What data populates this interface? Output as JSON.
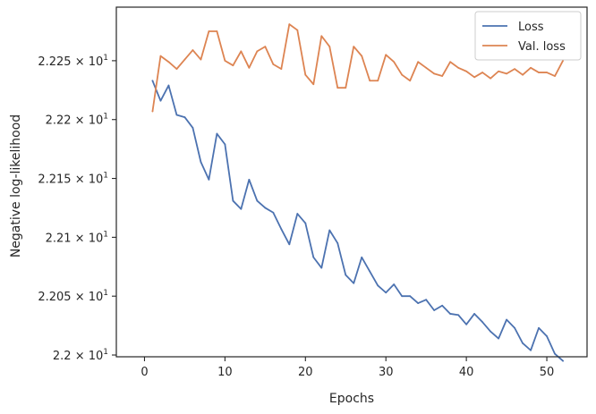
{
  "chart_data": {
    "type": "line",
    "title": "",
    "xlabel": "Epochs",
    "ylabel": "Negative log-likelihood",
    "xlim": [
      -3.5,
      55
    ],
    "ylim": [
      21.9985,
      22.2955
    ],
    "x_ticks": [
      0,
      10,
      20,
      30,
      40,
      50
    ],
    "x_tick_labels": [
      "0",
      "10",
      "20",
      "30",
      "40",
      "50"
    ],
    "y_ticks": [
      22.0,
      22.05,
      22.1,
      22.15,
      22.2,
      22.25
    ],
    "y_tick_labels": [
      {
        "mantissa": "2.2",
        "exp": "1"
      },
      {
        "mantissa": "2.205",
        "exp": "1"
      },
      {
        "mantissa": "2.21",
        "exp": "1"
      },
      {
        "mantissa": "2.215",
        "exp": "1"
      },
      {
        "mantissa": "2.22",
        "exp": "1"
      },
      {
        "mantissa": "2.225",
        "exp": "1"
      }
    ],
    "y_tick_base": "10",
    "y_tick_times": "×",
    "grid": false,
    "legend_position": "top-right",
    "x": [
      1,
      2,
      3,
      4,
      5,
      6,
      7,
      8,
      9,
      10,
      11,
      12,
      13,
      14,
      15,
      16,
      17,
      18,
      19,
      20,
      21,
      22,
      23,
      24,
      25,
      26,
      27,
      28,
      29,
      30,
      31,
      32,
      33,
      34,
      35,
      36,
      37,
      38,
      39,
      40,
      41,
      42,
      43,
      44,
      45,
      46,
      47,
      48,
      49,
      50,
      51,
      52
    ],
    "series": [
      {
        "name": "Loss",
        "color": "#4c72b0",
        "values": [
          22.233,
          22.216,
          22.229,
          22.204,
          22.202,
          22.193,
          22.164,
          22.149,
          22.188,
          22.179,
          22.131,
          22.124,
          22.149,
          22.131,
          22.125,
          22.121,
          22.107,
          22.094,
          22.12,
          22.112,
          22.083,
          22.074,
          22.106,
          22.095,
          22.068,
          22.061,
          22.083,
          22.071,
          22.059,
          22.053,
          22.06,
          22.05,
          22.05,
          22.044,
          22.047,
          22.038,
          22.042,
          22.035,
          22.034,
          22.026,
          22.035,
          22.028,
          22.02,
          22.014,
          22.03,
          22.023,
          22.01,
          22.004,
          22.023,
          22.016,
          22.001,
          21.995
        ]
      },
      {
        "name": "Val. loss",
        "color": "#dd8452",
        "values": [
          22.207,
          22.254,
          22.249,
          22.243,
          22.251,
          22.259,
          22.251,
          22.275,
          22.275,
          22.25,
          22.246,
          22.258,
          22.244,
          22.258,
          22.262,
          22.247,
          22.243,
          22.281,
          22.276,
          22.238,
          22.23,
          22.271,
          22.262,
          22.227,
          22.227,
          22.262,
          22.254,
          22.233,
          22.233,
          22.255,
          22.249,
          22.238,
          22.233,
          22.249,
          22.244,
          22.239,
          22.237,
          22.249,
          22.244,
          22.241,
          22.236,
          22.24,
          22.235,
          22.241,
          22.239,
          22.243,
          22.238,
          22.244,
          22.24,
          22.24,
          22.237,
          22.25
        ]
      }
    ]
  }
}
